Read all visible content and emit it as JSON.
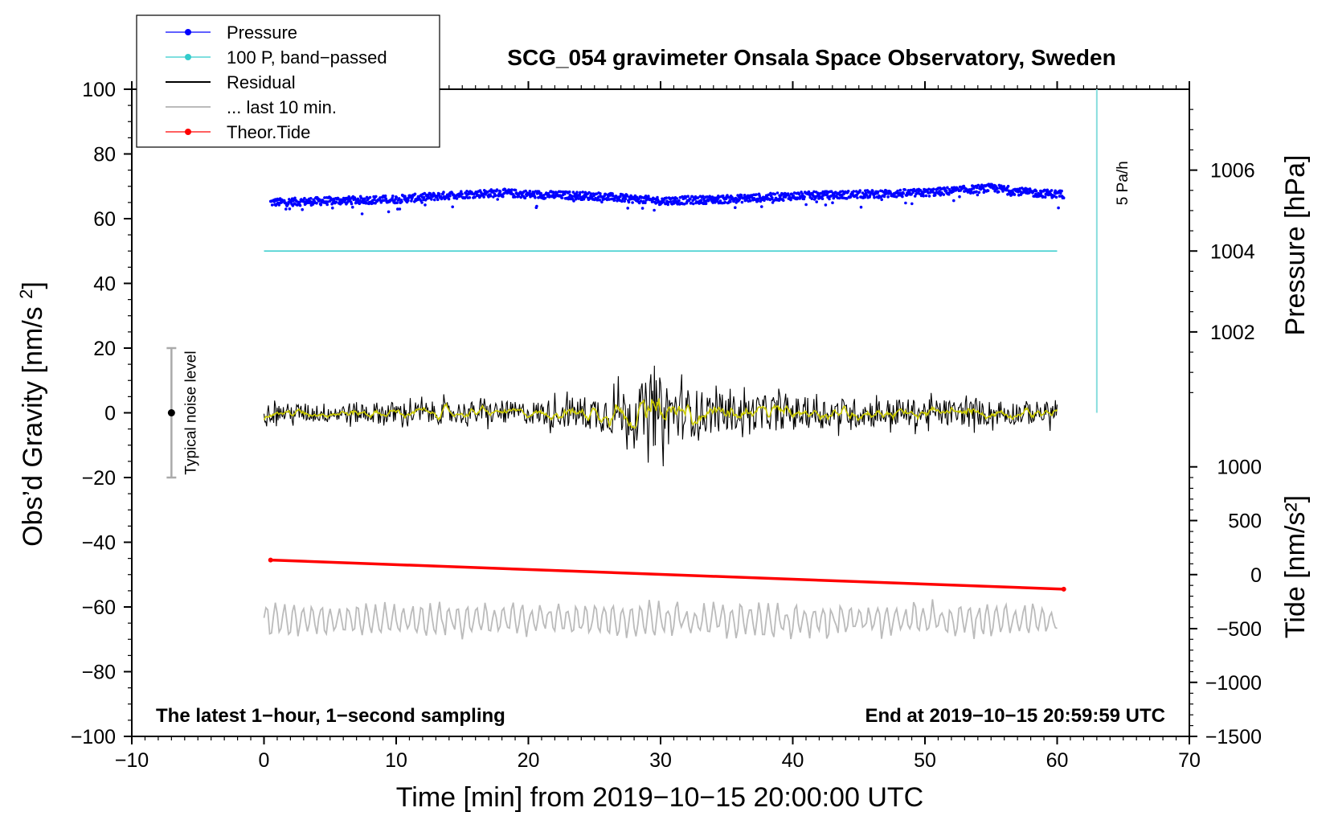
{
  "colors": {
    "pressure": "#0000ff",
    "band_passed": "#33cccc",
    "residual": "#000000",
    "residual_smooth": "#cccc00",
    "last10": "#bbbbbb",
    "tide": "#ff0000",
    "scale_bar": "#88dddd",
    "noise_bar": "#aaaaaa"
  },
  "chart_data": {
    "type": "line",
    "title": "SCG_054 gravimeter Onsala Space Observatory, Sweden",
    "xlabel": "Time [min] from 2019−10−15 20:00:00 UTC",
    "ylabel_left": "Obs’d Gravity [nm/s²]",
    "ylabel_right_top": "Pressure [hPa]",
    "ylabel_right_bottom": "Tide [nm/s²]",
    "xlim": [
      -10,
      70
    ],
    "ylim_left": [
      -100,
      100
    ],
    "x_ticks": [
      -10,
      0,
      10,
      20,
      30,
      40,
      50,
      60,
      70
    ],
    "x_tick_labels": [
      "−10",
      "0",
      "10",
      "20",
      "30",
      "40",
      "50",
      "60",
      "70"
    ],
    "y_left_ticks": [
      100,
      80,
      60,
      40,
      20,
      0,
      -20,
      -40,
      -60,
      -80,
      -100
    ],
    "y_left_tick_labels": [
      "100",
      "80",
      "60",
      "40",
      "20",
      "0",
      "−20",
      "−40",
      "−60",
      "−80",
      "−100"
    ],
    "pressure_axis": {
      "ticks": [
        1006,
        1004,
        1002
      ],
      "tick_labels": [
        "1006",
        "1004",
        "1002"
      ],
      "gravity_equiv": [
        75,
        50,
        25
      ]
    },
    "tide_axis": {
      "ticks": [
        1000,
        500,
        0,
        -500,
        -1000,
        -1500
      ],
      "tick_labels": [
        "1000",
        "500",
        "0",
        "−500",
        "−1000",
        "−1500"
      ],
      "gravity_equiv": [
        -16.7,
        -33.3,
        -50,
        -66.7,
        -83.3,
        -100
      ]
    },
    "legend": [
      "Pressure",
      "100 P, band−passed",
      "Residual",
      "... last 10 min.",
      "Theor.Tide"
    ],
    "series": [
      {
        "name": "Pressure",
        "x": [
          0.5,
          5,
          10,
          15,
          18,
          20,
          25,
          30,
          35,
          40,
          45,
          50,
          55,
          58,
          60.5
        ],
        "y": [
          65,
          65.5,
          66,
          67.5,
          68,
          67.5,
          67,
          65.5,
          66,
          67,
          67.5,
          68,
          69.5,
          68,
          67.5
        ],
        "spread": 1.5
      },
      {
        "name": "100 P, band−passed",
        "x": [
          0,
          60
        ],
        "y": [
          50,
          50
        ]
      },
      {
        "name": "Residual",
        "x": [
          0,
          10,
          20,
          25,
          28,
          30,
          32,
          35,
          40,
          50,
          60
        ],
        "envelope": [
          4,
          5,
          5,
          8,
          12,
          16,
          11,
          8,
          7,
          6,
          5
        ],
        "peak_max": 16,
        "peak_min": -18
      },
      {
        "name": "... last 10 min.",
        "x": [
          0,
          60
        ],
        "y_mean": -64,
        "amplitude": 6,
        "peak_max": -53,
        "peak_min": -70
      },
      {
        "name": "Theor.Tide",
        "x": [
          0.5,
          60.5
        ],
        "y": [
          -45.5,
          -54.5
        ]
      }
    ],
    "scale_bar": {
      "label": "5 Pa/h",
      "x": 63,
      "y_from": 100,
      "y_to": 0
    },
    "noise_bar": {
      "label": "Typical noise level",
      "x": -7,
      "y_center": 0,
      "y_from": -20,
      "y_to": 20
    },
    "note_left": "The latest 1−hour, 1−second sampling",
    "note_right": "End at 2019−10−15 20:59:59 UTC",
    "grid": false,
    "legend_position": "top-left"
  }
}
